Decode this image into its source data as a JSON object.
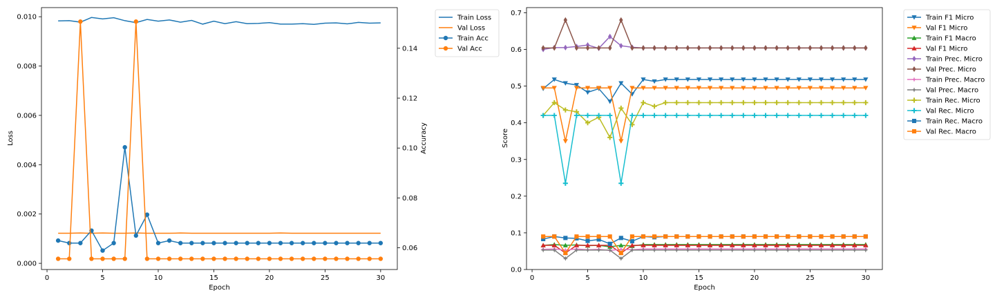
{
  "colors": {
    "blue": "#1f77b4",
    "orange": "#ff7f0e",
    "green": "#2ca02c",
    "red": "#d62728",
    "purple": "#9467bd",
    "brown": "#8c564b",
    "pink": "#e377c2",
    "gray": "#7f7f7f",
    "olive": "#bcbd22",
    "cyan": "#17becf"
  },
  "chart_data": [
    {
      "type": "line",
      "xlabel": "Epoch",
      "ylabel": "Loss",
      "y2label": "Accuracy",
      "xlim": [
        -0.5,
        31.5
      ],
      "ylim": [
        -0.00025,
        0.01037
      ],
      "y2lim": [
        0.0513,
        0.1563
      ],
      "xticks": [
        0,
        5,
        10,
        15,
        20,
        25,
        30
      ],
      "yticks": [
        0.0,
        0.002,
        0.004,
        0.006,
        0.008,
        0.01
      ],
      "ytick_labels": [
        "0.000",
        "0.002",
        "0.004",
        "0.006",
        "0.008",
        "0.010"
      ],
      "y2ticks": [
        0.06,
        0.08,
        0.1,
        0.12,
        0.14
      ],
      "y2tick_labels": [
        "0.06",
        "0.08",
        "0.10",
        "0.12",
        "0.14"
      ],
      "legend_position": "outside-right-top",
      "x": [
        1,
        2,
        3,
        4,
        5,
        6,
        7,
        8,
        9,
        10,
        11,
        12,
        13,
        14,
        15,
        16,
        17,
        18,
        19,
        20,
        21,
        22,
        23,
        24,
        25,
        26,
        27,
        28,
        29,
        30
      ],
      "series": [
        {
          "name": "Train Loss",
          "axis": "left",
          "color": "blue",
          "marker": "none",
          "values": [
            0.00983,
            0.00984,
            0.00978,
            0.00997,
            0.00991,
            0.00996,
            0.00984,
            0.00976,
            0.00989,
            0.00982,
            0.00987,
            0.00978,
            0.00985,
            0.0097,
            0.00982,
            0.00972,
            0.0098,
            0.00972,
            0.00973,
            0.00976,
            0.0097,
            0.0097,
            0.00972,
            0.00969,
            0.00974,
            0.00975,
            0.00971,
            0.00977,
            0.00974,
            0.00975
          ]
        },
        {
          "name": "Val Loss",
          "axis": "left",
          "color": "orange",
          "marker": "none",
          "values": [
            0.00122,
            0.00122,
            0.00123,
            0.00122,
            0.00123,
            0.00122,
            0.00122,
            0.00123,
            0.00122,
            0.00122,
            0.00122,
            0.00123,
            0.00122,
            0.00122,
            0.00122,
            0.00122,
            0.00122,
            0.00122,
            0.00122,
            0.00122,
            0.00123,
            0.00122,
            0.00122,
            0.00122,
            0.00122,
            0.00122,
            0.00122,
            0.00122,
            0.00122,
            0.00122
          ]
        },
        {
          "name": "Train Acc",
          "axis": "right",
          "color": "blue",
          "marker": "circle",
          "values": [
            0.0629,
            0.0619,
            0.0619,
            0.0669,
            0.0589,
            0.0619,
            0.1003,
            0.0649,
            0.0733,
            0.0619,
            0.0629,
            0.0619,
            0.0619,
            0.0619,
            0.0619,
            0.0619,
            0.0619,
            0.0619,
            0.0619,
            0.0619,
            0.0619,
            0.0619,
            0.0619,
            0.0619,
            0.0619,
            0.0619,
            0.0619,
            0.0619,
            0.0619,
            0.0619
          ]
        },
        {
          "name": "Val Acc",
          "axis": "right",
          "color": "orange",
          "marker": "circle",
          "values": [
            0.0556,
            0.0556,
            0.1507,
            0.0556,
            0.0556,
            0.0556,
            0.0556,
            0.1507,
            0.0556,
            0.0556,
            0.0556,
            0.0556,
            0.0556,
            0.0556,
            0.0556,
            0.0556,
            0.0556,
            0.0556,
            0.0556,
            0.0556,
            0.0556,
            0.0556,
            0.0556,
            0.0556,
            0.0556,
            0.0556,
            0.0556,
            0.0556,
            0.0556,
            0.0556
          ]
        }
      ]
    },
    {
      "type": "line",
      "xlabel": "Epoch",
      "ylabel": "Score",
      "xlim": [
        -0.5,
        31.5
      ],
      "ylim": [
        0.0,
        0.714
      ],
      "xticks": [
        0,
        5,
        10,
        15,
        20,
        25,
        30
      ],
      "yticks": [
        0.0,
        0.1,
        0.2,
        0.3,
        0.4,
        0.5,
        0.6,
        0.7
      ],
      "ytick_labels": [
        "0.0",
        "0.1",
        "0.2",
        "0.3",
        "0.4",
        "0.5",
        "0.6",
        "0.7"
      ],
      "legend_position": "outside-right-top",
      "x": [
        1,
        2,
        3,
        4,
        5,
        6,
        7,
        8,
        9,
        10,
        11,
        12,
        13,
        14,
        15,
        16,
        17,
        18,
        19,
        20,
        21,
        22,
        23,
        24,
        25,
        26,
        27,
        28,
        29,
        30
      ],
      "series": [
        {
          "name": "Train F1 Micro",
          "color": "blue",
          "marker": "tri-down",
          "values": [
            0.493,
            0.518,
            0.508,
            0.503,
            0.483,
            0.493,
            0.458,
            0.508,
            0.478,
            0.518,
            0.513,
            0.518,
            0.518,
            0.518,
            0.518,
            0.518,
            0.518,
            0.518,
            0.518,
            0.518,
            0.518,
            0.518,
            0.518,
            0.518,
            0.518,
            0.518,
            0.518,
            0.518,
            0.518,
            0.518
          ]
        },
        {
          "name": "Val F1 Micro",
          "color": "orange",
          "marker": "tri-down",
          "values": [
            0.495,
            0.495,
            0.35,
            0.495,
            0.495,
            0.495,
            0.495,
            0.35,
            0.495,
            0.495,
            0.495,
            0.495,
            0.495,
            0.495,
            0.495,
            0.495,
            0.495,
            0.495,
            0.495,
            0.495,
            0.495,
            0.495,
            0.495,
            0.495,
            0.495,
            0.495,
            0.495,
            0.495,
            0.495,
            0.495
          ]
        },
        {
          "name": "Train F1 Macro",
          "color": "green",
          "marker": "tri-up",
          "values": [
            0.066,
            0.068,
            0.066,
            0.067,
            0.065,
            0.066,
            0.062,
            0.066,
            0.064,
            0.068,
            0.068,
            0.068,
            0.068,
            0.068,
            0.068,
            0.068,
            0.068,
            0.068,
            0.068,
            0.068,
            0.068,
            0.068,
            0.068,
            0.068,
            0.068,
            0.068,
            0.068,
            0.068,
            0.068,
            0.068
          ]
        },
        {
          "name": "Val F1 Micro",
          "color": "red",
          "marker": "tri-up",
          "values": [
            0.066,
            0.066,
            0.045,
            0.066,
            0.066,
            0.066,
            0.066,
            0.045,
            0.066,
            0.066,
            0.066,
            0.066,
            0.066,
            0.066,
            0.066,
            0.066,
            0.066,
            0.066,
            0.066,
            0.066,
            0.066,
            0.066,
            0.066,
            0.066,
            0.066,
            0.066,
            0.066,
            0.066,
            0.066,
            0.066
          ]
        },
        {
          "name": "Train Prec. Micro",
          "color": "purple",
          "marker": "diamond",
          "values": [
            0.6,
            0.605,
            0.605,
            0.608,
            0.612,
            0.603,
            0.635,
            0.61,
            0.606,
            0.604,
            0.604,
            0.604,
            0.604,
            0.604,
            0.604,
            0.604,
            0.604,
            0.604,
            0.604,
            0.604,
            0.604,
            0.604,
            0.604,
            0.604,
            0.604,
            0.604,
            0.604,
            0.604,
            0.604,
            0.604
          ]
        },
        {
          "name": "Val Prec. Micro",
          "color": "brown",
          "marker": "diamond",
          "values": [
            0.604,
            0.604,
            0.68,
            0.604,
            0.604,
            0.604,
            0.604,
            0.68,
            0.604,
            0.604,
            0.604,
            0.604,
            0.604,
            0.604,
            0.604,
            0.604,
            0.604,
            0.604,
            0.604,
            0.604,
            0.604,
            0.604,
            0.604,
            0.604,
            0.604,
            0.604,
            0.604,
            0.604,
            0.604,
            0.604
          ]
        },
        {
          "name": "Train Prec. Macro",
          "color": "pink",
          "marker": "star",
          "values": [
            0.055,
            0.056,
            0.053,
            0.056,
            0.054,
            0.055,
            0.052,
            0.055,
            0.054,
            0.056,
            0.056,
            0.056,
            0.056,
            0.056,
            0.056,
            0.056,
            0.056,
            0.056,
            0.056,
            0.056,
            0.056,
            0.056,
            0.056,
            0.056,
            0.056,
            0.056,
            0.056,
            0.056,
            0.056,
            0.056
          ]
        },
        {
          "name": "Val Prec. Macro",
          "color": "gray",
          "marker": "star",
          "values": [
            0.053,
            0.053,
            0.03,
            0.053,
            0.053,
            0.053,
            0.053,
            0.03,
            0.053,
            0.053,
            0.053,
            0.053,
            0.053,
            0.053,
            0.053,
            0.053,
            0.053,
            0.053,
            0.053,
            0.053,
            0.053,
            0.053,
            0.053,
            0.053,
            0.053,
            0.053,
            0.053,
            0.053,
            0.053,
            0.053
          ]
        },
        {
          "name": "Train Rec. Micro",
          "color": "olive",
          "marker": "plus",
          "values": [
            0.42,
            0.455,
            0.435,
            0.43,
            0.4,
            0.415,
            0.36,
            0.44,
            0.395,
            0.455,
            0.445,
            0.455,
            0.455,
            0.455,
            0.455,
            0.455,
            0.455,
            0.455,
            0.455,
            0.455,
            0.455,
            0.455,
            0.455,
            0.455,
            0.455,
            0.455,
            0.455,
            0.455,
            0.455,
            0.455
          ]
        },
        {
          "name": "Val Rec. Micro",
          "color": "cyan",
          "marker": "plus",
          "values": [
            0.42,
            0.42,
            0.235,
            0.42,
            0.42,
            0.42,
            0.42,
            0.235,
            0.42,
            0.42,
            0.42,
            0.42,
            0.42,
            0.42,
            0.42,
            0.42,
            0.42,
            0.42,
            0.42,
            0.42,
            0.42,
            0.42,
            0.42,
            0.42,
            0.42,
            0.42,
            0.42,
            0.42,
            0.42,
            0.42
          ]
        },
        {
          "name": "Train Rec. Macro",
          "color": "blue",
          "marker": "square",
          "values": [
            0.083,
            0.09,
            0.086,
            0.085,
            0.078,
            0.082,
            0.07,
            0.086,
            0.077,
            0.09,
            0.088,
            0.09,
            0.09,
            0.09,
            0.09,
            0.09,
            0.09,
            0.09,
            0.09,
            0.09,
            0.09,
            0.09,
            0.09,
            0.09,
            0.09,
            0.09,
            0.09,
            0.09,
            0.09,
            0.09
          ]
        },
        {
          "name": "Val Rec. Macro",
          "color": "orange",
          "marker": "square",
          "values": [
            0.09,
            0.09,
            0.045,
            0.09,
            0.09,
            0.09,
            0.09,
            0.045,
            0.09,
            0.09,
            0.09,
            0.09,
            0.09,
            0.09,
            0.09,
            0.09,
            0.09,
            0.09,
            0.09,
            0.09,
            0.09,
            0.09,
            0.09,
            0.09,
            0.09,
            0.09,
            0.09,
            0.09,
            0.09,
            0.09
          ]
        }
      ]
    }
  ]
}
